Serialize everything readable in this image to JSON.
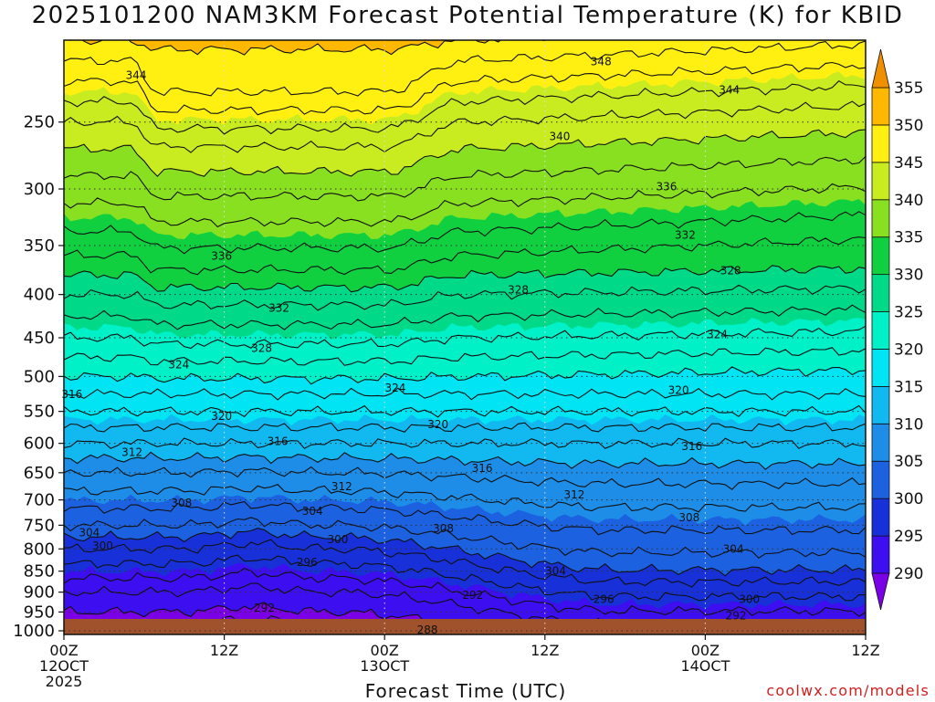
{
  "chart_data": {
    "type": "heatmap",
    "title": "2025101200 NAM3KM Forecast Potential Temperature (K) for KBID",
    "xlabel": "Forecast Time (UTC)",
    "ylabel": "",
    "y_ticks": [
      250,
      300,
      350,
      400,
      450,
      500,
      550,
      600,
      650,
      700,
      750,
      800,
      850,
      900,
      950,
      1000
    ],
    "x_ticks": [
      {
        "hours": 0,
        "top": "00Z",
        "mid": "12OCT",
        "bottom": "2025"
      },
      {
        "hours": 12,
        "top": "12Z",
        "mid": "",
        "bottom": ""
      },
      {
        "hours": 24,
        "top": "00Z",
        "mid": "13OCT",
        "bottom": ""
      },
      {
        "hours": 36,
        "top": "12Z",
        "mid": "",
        "bottom": ""
      },
      {
        "hours": 48,
        "top": "00Z",
        "mid": "14OCT",
        "bottom": ""
      },
      {
        "hours": 60,
        "top": "12Z",
        "mid": "",
        "bottom": ""
      }
    ],
    "xlim_hours": [
      0,
      60
    ],
    "ylim_hpa": [
      1010,
      200
    ],
    "colorbar": {
      "levels": [
        290,
        295,
        300,
        305,
        310,
        315,
        320,
        325,
        330,
        335,
        340,
        345,
        350,
        355
      ],
      "colors": [
        "#7a00e6",
        "#3c0ef0",
        "#1830d8",
        "#1c62e0",
        "#1d8de8",
        "#12b8f0",
        "#00e4f4",
        "#00f0c8",
        "#00da88",
        "#10d040",
        "#88e020",
        "#c8ec20",
        "#fff012",
        "#ffb800",
        "#f09000"
      ]
    },
    "theta_profile": [
      {
        "p": 1000,
        "theta": 287
      },
      {
        "p": 950,
        "theta": 290
      },
      {
        "p": 900,
        "theta": 292
      },
      {
        "p": 850,
        "theta": 295
      },
      {
        "p": 800,
        "theta": 298
      },
      {
        "p": 750,
        "theta": 302
      },
      {
        "p": 700,
        "theta": 305
      },
      {
        "p": 650,
        "theta": 308
      },
      {
        "p": 600,
        "theta": 312
      },
      {
        "p": 550,
        "theta": 316
      },
      {
        "p": 500,
        "theta": 320
      },
      {
        "p": 450,
        "theta": 324
      },
      {
        "p": 400,
        "theta": 328
      },
      {
        "p": 350,
        "theta": 333
      },
      {
        "p": 300,
        "theta": 337
      },
      {
        "p": 250,
        "theta": 342
      },
      {
        "p": 200,
        "theta": 350
      }
    ],
    "contour_labels": [
      {
        "value": "344",
        "hours": 5.4,
        "p": 220
      },
      {
        "value": "348",
        "hours": 40.2,
        "p": 212
      },
      {
        "value": "344",
        "hours": 49.8,
        "p": 229
      },
      {
        "value": "340",
        "hours": 37.1,
        "p": 260
      },
      {
        "value": "336",
        "hours": 45.1,
        "p": 298
      },
      {
        "value": "336",
        "hours": 11.8,
        "p": 360
      },
      {
        "value": "332",
        "hours": 46.5,
        "p": 340
      },
      {
        "value": "328",
        "hours": 49.9,
        "p": 375
      },
      {
        "value": "328",
        "hours": 34.0,
        "p": 395
      },
      {
        "value": "332",
        "hours": 16.1,
        "p": 415
      },
      {
        "value": "324",
        "hours": 48.9,
        "p": 446
      },
      {
        "value": "328",
        "hours": 14.8,
        "p": 463
      },
      {
        "value": "324",
        "hours": 8.6,
        "p": 484
      },
      {
        "value": "324",
        "hours": 24.8,
        "p": 516
      },
      {
        "value": "320",
        "hours": 46.0,
        "p": 519
      },
      {
        "value": "316",
        "hours": 0.6,
        "p": 525
      },
      {
        "value": "320",
        "hours": 11.8,
        "p": 557
      },
      {
        "value": "320",
        "hours": 28.0,
        "p": 570
      },
      {
        "value": "316",
        "hours": 16.0,
        "p": 597
      },
      {
        "value": "316",
        "hours": 47.0,
        "p": 605
      },
      {
        "value": "312",
        "hours": 5.1,
        "p": 615
      },
      {
        "value": "316",
        "hours": 31.3,
        "p": 642
      },
      {
        "value": "312",
        "hours": 20.8,
        "p": 675
      },
      {
        "value": "312",
        "hours": 38.2,
        "p": 690
      },
      {
        "value": "308",
        "hours": 8.8,
        "p": 706
      },
      {
        "value": "304",
        "hours": 18.6,
        "p": 722
      },
      {
        "value": "308",
        "hours": 46.8,
        "p": 735
      },
      {
        "value": "308",
        "hours": 28.4,
        "p": 757
      },
      {
        "value": "304",
        "hours": 1.9,
        "p": 765
      },
      {
        "value": "300",
        "hours": 2.9,
        "p": 793
      },
      {
        "value": "300",
        "hours": 20.5,
        "p": 780
      },
      {
        "value": "304",
        "hours": 50.1,
        "p": 800
      },
      {
        "value": "296",
        "hours": 18.2,
        "p": 830
      },
      {
        "value": "304",
        "hours": 36.8,
        "p": 850
      },
      {
        "value": "292",
        "hours": 30.6,
        "p": 907
      },
      {
        "value": "296",
        "hours": 40.4,
        "p": 918
      },
      {
        "value": "300",
        "hours": 51.3,
        "p": 918
      },
      {
        "value": "292",
        "hours": 15.0,
        "p": 940
      },
      {
        "value": "292",
        "hours": 50.3,
        "p": 960
      },
      {
        "value": "288",
        "hours": 27.2,
        "p": 998
      }
    ]
  },
  "credit": "coolwx.com/models"
}
